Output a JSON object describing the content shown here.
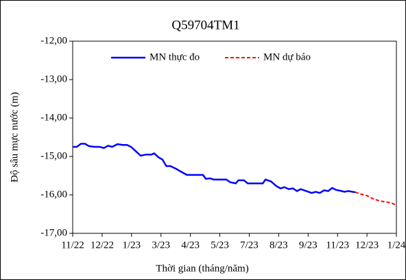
{
  "chart_data": {
    "type": "line",
    "title": "Q59704TM1",
    "xlabel": "Thời gian (tháng/năm)",
    "ylabel": "Độ sâu mực nước (m)",
    "xlim": [
      0,
      11
    ],
    "xticks": [
      {
        "value": 0,
        "label": "11/22"
      },
      {
        "value": 1,
        "label": "12/22"
      },
      {
        "value": 2,
        "label": "1/23"
      },
      {
        "value": 3,
        "label": "3/23"
      },
      {
        "value": 4,
        "label": "4/23"
      },
      {
        "value": 5,
        "label": "5/23"
      },
      {
        "value": 6,
        "label": "7/23"
      },
      {
        "value": 7,
        "label": "8/23"
      },
      {
        "value": 8,
        "label": "9/23"
      },
      {
        "value": 9,
        "label": "11/23"
      },
      {
        "value": 10,
        "label": "12/23"
      },
      {
        "value": 11,
        "label": "1/24"
      }
    ],
    "ylim": [
      -17,
      -12
    ],
    "yticks": [
      {
        "value": -17,
        "label": "-17,00"
      },
      {
        "value": -16,
        "label": "-16,00"
      },
      {
        "value": -15,
        "label": "-15,00"
      },
      {
        "value": -14,
        "label": "-14,00"
      },
      {
        "value": -13,
        "label": "-13,00"
      },
      {
        "value": -12,
        "label": "-12,00"
      }
    ],
    "grid": false,
    "legend": "top",
    "series": [
      {
        "name": "MN thực đo",
        "color": "#0000ff",
        "dash": false,
        "x": [
          0,
          0.14,
          0.28,
          0.42,
          0.55,
          0.74,
          0.92,
          1.06,
          1.2,
          1.34,
          1.52,
          1.71,
          1.85,
          1.98,
          2.17,
          2.31,
          2.49,
          2.68,
          2.77,
          2.91,
          3.05,
          3.18,
          3.32,
          3.51,
          3.69,
          3.88,
          4.06,
          4.25,
          4.43,
          4.52,
          4.66,
          4.8,
          5.08,
          5.22,
          5.35,
          5.54,
          5.63,
          5.82,
          5.95,
          6.18,
          6.37,
          6.46,
          6.55,
          6.74,
          6.92,
          7.06,
          7.2,
          7.34,
          7.48,
          7.62,
          7.75,
          7.94,
          8.12,
          8.26,
          8.4,
          8.54,
          8.68,
          8.82,
          8.95,
          9.14,
          9.23,
          9.37,
          9.51,
          9.6
        ],
        "values": [
          -14.75,
          -14.75,
          -14.67,
          -14.67,
          -14.73,
          -14.75,
          -14.75,
          -14.78,
          -14.72,
          -14.75,
          -14.68,
          -14.7,
          -14.7,
          -14.75,
          -14.88,
          -14.98,
          -14.95,
          -14.95,
          -14.92,
          -15.02,
          -15.08,
          -15.25,
          -15.25,
          -15.32,
          -15.4,
          -15.48,
          -15.48,
          -15.48,
          -15.48,
          -15.58,
          -15.57,
          -15.6,
          -15.6,
          -15.6,
          -15.67,
          -15.7,
          -15.62,
          -15.62,
          -15.7,
          -15.7,
          -15.7,
          -15.7,
          -15.6,
          -15.65,
          -15.77,
          -15.83,
          -15.8,
          -15.85,
          -15.83,
          -15.9,
          -15.85,
          -15.9,
          -15.95,
          -15.92,
          -15.95,
          -15.88,
          -15.9,
          -15.82,
          -15.87,
          -15.9,
          -15.92,
          -15.9,
          -15.92,
          -15.93
        ]
      },
      {
        "name": "MN dự báo",
        "color": "#ff0000",
        "dash": true,
        "x": [
          9.6,
          9.8,
          10.0,
          10.2,
          10.4,
          10.6,
          10.8,
          11.0
        ],
        "values": [
          -15.93,
          -15.98,
          -16.02,
          -16.1,
          -16.15,
          -16.18,
          -16.2,
          -16.27
        ]
      }
    ]
  }
}
